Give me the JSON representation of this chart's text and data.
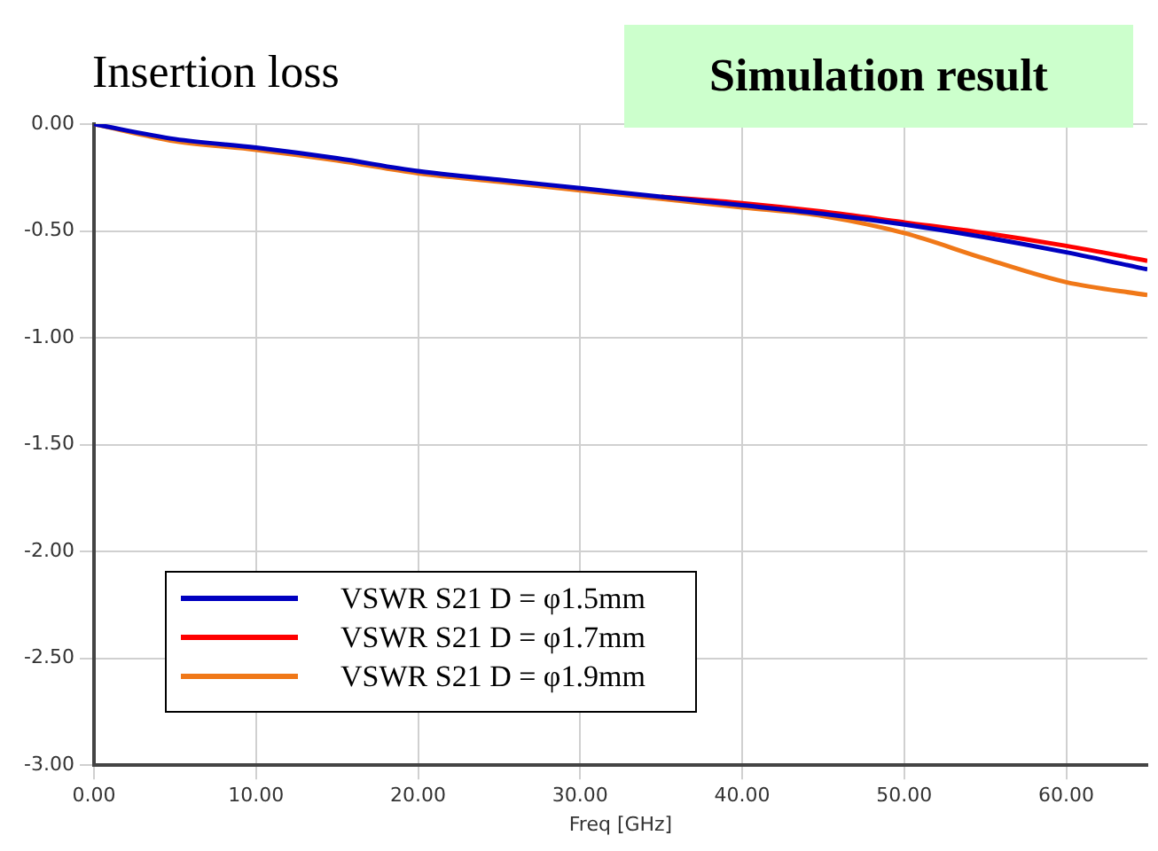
{
  "chart_data": {
    "type": "line",
    "title": "Insertion loss",
    "subtitle": "Simulation result",
    "xlabel": "Freq [GHz]",
    "x": [
      0,
      5,
      10,
      15,
      20,
      25,
      30,
      35,
      40,
      45,
      50,
      55,
      60,
      65
    ],
    "series": [
      {
        "name": "VSWR S21  D = φ1.5mm",
        "color": "#0000c0",
        "values": [
          0,
          -0.07,
          -0.11,
          -0.16,
          -0.22,
          -0.26,
          -0.3,
          -0.34,
          -0.38,
          -0.42,
          -0.47,
          -0.53,
          -0.6,
          -0.68
        ]
      },
      {
        "name": "VSWR S21  D = φ1.7mm",
        "color": "#ff0000",
        "values": [
          null,
          null,
          null,
          null,
          null,
          null,
          null,
          -0.34,
          -0.37,
          -0.41,
          -0.46,
          -0.51,
          -0.57,
          -0.64
        ]
      },
      {
        "name": "VSWR S21  D = φ1.9mm",
        "color": "#f07818",
        "values": [
          0,
          -0.08,
          -0.12,
          -0.17,
          -0.23,
          -0.27,
          -0.31,
          -0.35,
          -0.39,
          -0.43,
          -0.51,
          -0.63,
          -0.74,
          -0.8
        ]
      }
    ],
    "xlim": [
      0,
      65
    ],
    "xticks": [
      {
        "value": 0,
        "label": "0.00"
      },
      {
        "value": 10,
        "label": "10.00"
      },
      {
        "value": 20,
        "label": "20.00"
      },
      {
        "value": 30,
        "label": "30.00"
      },
      {
        "value": 40,
        "label": "40.00"
      },
      {
        "value": 50,
        "label": "50.00"
      },
      {
        "value": 60,
        "label": "60.00"
      }
    ],
    "ylim": [
      -3,
      0
    ],
    "yticks": [
      {
        "value": -3,
        "label": "-3.00"
      },
      {
        "value": -2.5,
        "label": "-2.50"
      },
      {
        "value": -2,
        "label": "-2.00"
      },
      {
        "value": -1.5,
        "label": "-1.50"
      },
      {
        "value": -1,
        "label": "-1.00"
      },
      {
        "value": -0.5,
        "label": "-0.50"
      },
      {
        "value": 0,
        "label": "0.00"
      }
    ],
    "grid": true,
    "legend": "bottom left",
    "marker": "none",
    "line_style": "solid"
  }
}
